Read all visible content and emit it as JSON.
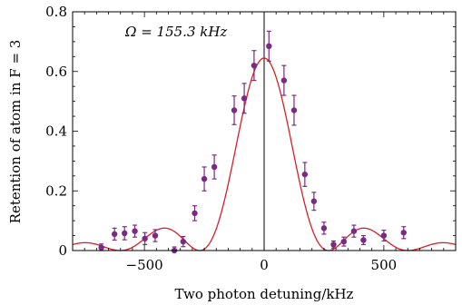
{
  "chart_data": {
    "type": "scatter",
    "xlabel": "Two photon detuning/kHz",
    "ylabel": "Retention of atom in F = 3",
    "annotation": "Ω = 155.3 kHz",
    "xlim": [
      -800,
      800
    ],
    "ylim": [
      0,
      0.8
    ],
    "x_ticks": [
      -500,
      0,
      500
    ],
    "x_tick_labels": [
      "−500",
      "0",
      "500"
    ],
    "y_ticks": [
      0,
      0.2,
      0.4,
      0.6,
      0.8
    ],
    "y_tick_labels": [
      "0",
      "0.2",
      "0.4",
      "0.6",
      "0.8"
    ],
    "grid": false,
    "vertical_reference_line_x": 0,
    "series": [
      {
        "kind": "points_with_error_bars",
        "color": "#7a2a83",
        "points": [
          {
            "x": -680,
            "y": 0.01,
            "err": 0.012
          },
          {
            "x": -625,
            "y": 0.055,
            "err": 0.02
          },
          {
            "x": -583,
            "y": 0.058,
            "err": 0.022
          },
          {
            "x": -540,
            "y": 0.065,
            "err": 0.02
          },
          {
            "x": -498,
            "y": 0.04,
            "err": 0.02
          },
          {
            "x": -455,
            "y": 0.05,
            "err": 0.02
          },
          {
            "x": -375,
            "y": 0.0,
            "err": 0.012
          },
          {
            "x": -338,
            "y": 0.03,
            "err": 0.017
          },
          {
            "x": -290,
            "y": 0.125,
            "err": 0.025
          },
          {
            "x": -250,
            "y": 0.24,
            "err": 0.04
          },
          {
            "x": -208,
            "y": 0.28,
            "err": 0.04
          },
          {
            "x": -125,
            "y": 0.47,
            "err": 0.048
          },
          {
            "x": -83,
            "y": 0.51,
            "err": 0.05
          },
          {
            "x": -42,
            "y": 0.62,
            "err": 0.05
          },
          {
            "x": 20,
            "y": 0.685,
            "err": 0.05
          },
          {
            "x": 83,
            "y": 0.57,
            "err": 0.05
          },
          {
            "x": 125,
            "y": 0.47,
            "err": 0.05
          },
          {
            "x": 170,
            "y": 0.255,
            "err": 0.04
          },
          {
            "x": 208,
            "y": 0.165,
            "err": 0.03
          },
          {
            "x": 250,
            "y": 0.075,
            "err": 0.02
          },
          {
            "x": 290,
            "y": 0.02,
            "err": 0.012
          },
          {
            "x": 333,
            "y": 0.03,
            "err": 0.015
          },
          {
            "x": 375,
            "y": 0.065,
            "err": 0.02
          },
          {
            "x": 415,
            "y": 0.035,
            "err": 0.015
          },
          {
            "x": 500,
            "y": 0.05,
            "err": 0.018
          },
          {
            "x": 583,
            "y": 0.06,
            "err": 0.02
          }
        ]
      },
      {
        "kind": "fit_curve",
        "color": "#d4202a",
        "model": "rabi_pulse",
        "amplitude": 0.645,
        "omega_khz": 155.3,
        "pulse_time_us": 3.22
      }
    ]
  }
}
